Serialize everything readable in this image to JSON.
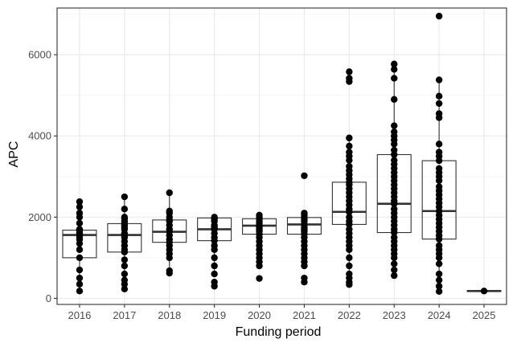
{
  "chart_data": {
    "type": "box",
    "title": "",
    "xlabel": "Funding period",
    "ylabel": "APC",
    "ylim": [
      -150,
      7150
    ],
    "yticks": [
      0,
      2000,
      4000,
      6000
    ],
    "ytick_labels": [
      "0",
      "2000",
      "4000",
      "6000"
    ],
    "grid": true,
    "categories": [
      "2016",
      "2017",
      "2018",
      "2019",
      "2020",
      "2021",
      "2022",
      "2023",
      "2024",
      "2025"
    ],
    "boxes": [
      {
        "category": "2016",
        "q1": 1000,
        "median": 1560,
        "q3": 1680
      },
      {
        "category": "2017",
        "q1": 1140,
        "median": 1560,
        "q3": 1840
      },
      {
        "category": "2018",
        "q1": 1380,
        "median": 1640,
        "q3": 1930
      },
      {
        "category": "2019",
        "q1": 1420,
        "median": 1700,
        "q3": 1980
      },
      {
        "category": "2020",
        "q1": 1580,
        "median": 1790,
        "q3": 1960
      },
      {
        "category": "2021",
        "q1": 1580,
        "median": 1820,
        "q3": 1990
      },
      {
        "category": "2022",
        "q1": 1820,
        "median": 2130,
        "q3": 2860
      },
      {
        "category": "2023",
        "q1": 1620,
        "median": 2330,
        "q3": 3540
      },
      {
        "category": "2024",
        "q1": 1460,
        "median": 2150,
        "q3": 3390
      },
      {
        "category": "2025",
        "q1": 170,
        "median": 180,
        "q3": 190
      }
    ],
    "points": [
      {
        "category": "2016",
        "values": [
          180,
          350,
          500,
          700,
          1000,
          1200,
          1350,
          1450,
          1500,
          1560,
          1600,
          1640,
          1680,
          1700,
          1850,
          2000,
          2100,
          2250,
          2380
        ]
      },
      {
        "category": "2017",
        "values": [
          230,
          350,
          450,
          600,
          800,
          950,
          1140,
          1200,
          1300,
          1400,
          1500,
          1560,
          1600,
          1700,
          1750,
          1800,
          1840,
          1900,
          1960,
          2000,
          2200,
          2500
        ]
      },
      {
        "category": "2018",
        "values": [
          620,
          680,
          1000,
          1100,
          1200,
          1300,
          1380,
          1450,
          1550,
          1640,
          1700,
          1800,
          1900,
          1930,
          2000,
          2100,
          2150,
          2600
        ]
      },
      {
        "category": "2019",
        "values": [
          300,
          400,
          600,
          800,
          1000,
          1200,
          1300,
          1420,
          1500,
          1600,
          1700,
          1750,
          1800,
          1900,
          1950,
          1980,
          2000
        ]
      },
      {
        "category": "2020",
        "values": [
          490,
          800,
          900,
          1000,
          1100,
          1200,
          1300,
          1400,
          1500,
          1580,
          1650,
          1700,
          1750,
          1790,
          1850,
          1900,
          1960,
          2000,
          2050
        ]
      },
      {
        "category": "2021",
        "values": [
          400,
          500,
          800,
          900,
          1000,
          1100,
          1200,
          1300,
          1400,
          1500,
          1580,
          1650,
          1700,
          1750,
          1820,
          1900,
          1950,
          2000,
          2050,
          2100,
          3020
        ]
      },
      {
        "category": "2022",
        "values": [
          340,
          400,
          500,
          600,
          800,
          1000,
          1200,
          1300,
          1400,
          1500,
          1600,
          1700,
          1820,
          1900,
          2000,
          2130,
          2200,
          2300,
          2400,
          2500,
          2600,
          2700,
          2800,
          2860,
          2950,
          3050,
          3150,
          3250,
          3400,
          3500,
          3600,
          3750,
          3950,
          5340,
          5420,
          5580
        ]
      },
      {
        "category": "2023",
        "values": [
          560,
          700,
          850,
          1000,
          1100,
          1200,
          1300,
          1400,
          1500,
          1620,
          1700,
          1800,
          1900,
          2000,
          2100,
          2200,
          2330,
          2400,
          2500,
          2600,
          2700,
          2800,
          2900,
          3000,
          3100,
          3200,
          3300,
          3400,
          3540,
          3650,
          3800,
          3900,
          4000,
          4100,
          4250,
          4900,
          5420,
          5640,
          5770
        ]
      },
      {
        "category": "2024",
        "values": [
          170,
          300,
          450,
          600,
          850,
          1000,
          1100,
          1200,
          1300,
          1460,
          1550,
          1650,
          1750,
          1850,
          1950,
          2050,
          2150,
          2250,
          2350,
          2450,
          2550,
          2650,
          2750,
          2900,
          3000,
          3100,
          3200,
          3390,
          3500,
          3600,
          3800,
          4450,
          4550,
          4800,
          4980,
          5380,
          6950
        ]
      },
      {
        "category": "2025",
        "values": [
          180
        ]
      }
    ],
    "colors": {
      "panel_background": "#ffffff",
      "panel_border": "#333333",
      "grid_major": "#ebebeb",
      "grid_minor": "#f5f5f5",
      "box_outline": "#333333",
      "point_fill": "#000000",
      "tick_label": "#4d4d4d",
      "axis_title": "#000000"
    }
  }
}
